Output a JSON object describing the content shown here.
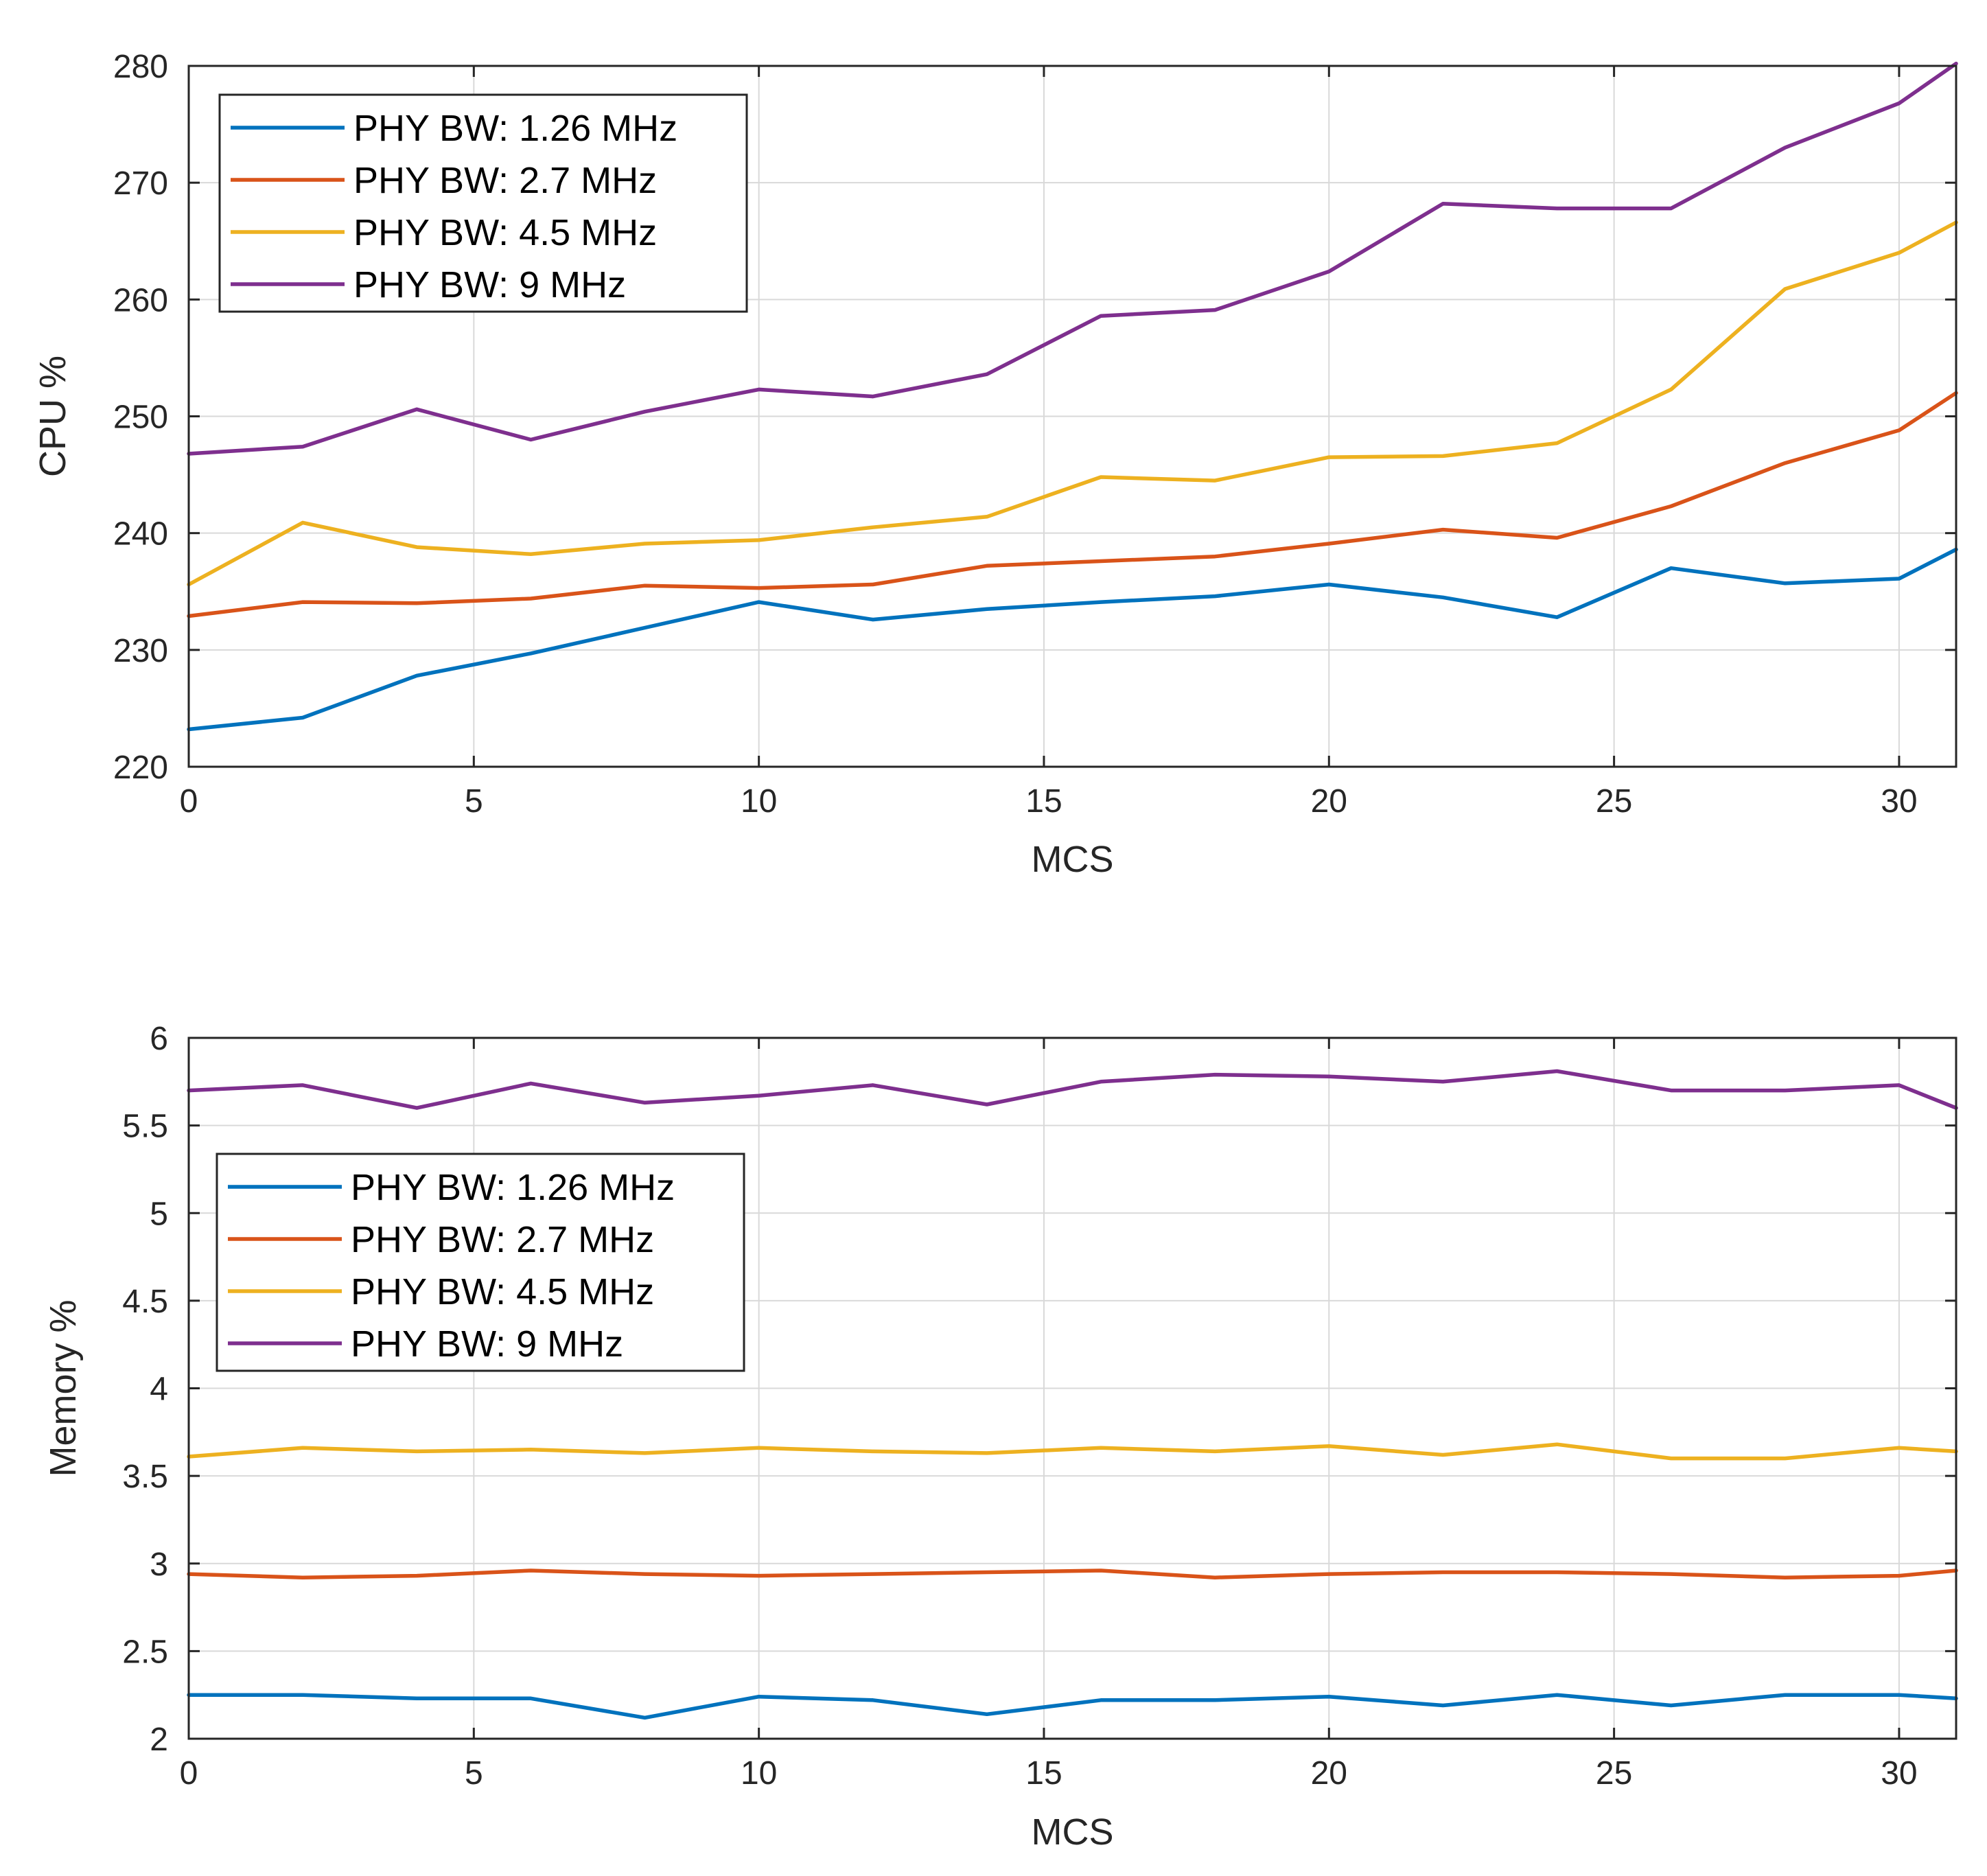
{
  "chart_data": [
    {
      "type": "line",
      "title": "",
      "xlabel": "MCS",
      "ylabel": "CPU %",
      "xlim": [
        0,
        31
      ],
      "ylim": [
        220,
        280
      ],
      "xticks": [
        0,
        5,
        10,
        15,
        20,
        25,
        30
      ],
      "yticks": [
        220,
        230,
        240,
        250,
        260,
        270,
        280
      ],
      "grid": true,
      "legend_position": "top-left",
      "x": [
        0,
        2,
        4,
        6,
        8,
        10,
        12,
        14,
        16,
        18,
        20,
        22,
        24,
        26,
        28,
        30,
        31
      ],
      "series": [
        {
          "name": "PHY BW: 1.26 MHz",
          "color": "#0072BD",
          "values": [
            223.2,
            224.2,
            227.8,
            229.7,
            231.9,
            234.1,
            232.6,
            233.5,
            234.1,
            234.6,
            235.6,
            234.5,
            232.8,
            237.0,
            235.7,
            236.1,
            238.6
          ]
        },
        {
          "name": "PHY BW: 2.7 MHz",
          "color": "#D95319",
          "values": [
            232.9,
            234.1,
            234.0,
            234.4,
            235.5,
            235.3,
            235.6,
            237.2,
            237.6,
            238.0,
            239.1,
            240.3,
            239.6,
            242.3,
            246.0,
            248.8,
            252.0
          ]
        },
        {
          "name": "PHY BW: 4.5 MHz",
          "color": "#EDB120",
          "values": [
            235.6,
            240.9,
            238.8,
            238.2,
            239.1,
            239.4,
            240.5,
            241.4,
            244.8,
            244.5,
            246.5,
            246.6,
            247.7,
            252.3,
            260.9,
            264.0,
            266.6
          ]
        },
        {
          "name": "PHY BW: 9 MHz",
          "color": "#7E2F8E",
          "values": [
            246.8,
            247.4,
            250.6,
            248.0,
            250.4,
            252.3,
            251.7,
            253.6,
            258.6,
            259.1,
            262.4,
            268.2,
            267.8,
            267.8,
            273.0,
            276.8,
            280.2
          ]
        }
      ]
    },
    {
      "type": "line",
      "title": "",
      "xlabel": "MCS",
      "ylabel": "Memory %",
      "xlim": [
        0,
        31
      ],
      "ylim": [
        2,
        6
      ],
      "xticks": [
        0,
        5,
        10,
        15,
        20,
        25,
        30
      ],
      "yticks": [
        2,
        2.5,
        3,
        3.5,
        4,
        4.5,
        5,
        5.5,
        6
      ],
      "grid": true,
      "legend_position": "upper-left",
      "x": [
        0,
        2,
        4,
        6,
        8,
        10,
        12,
        14,
        16,
        18,
        20,
        22,
        24,
        26,
        28,
        30,
        31
      ],
      "series": [
        {
          "name": "PHY BW: 1.26 MHz",
          "color": "#0072BD",
          "values": [
            2.25,
            2.25,
            2.23,
            2.23,
            2.12,
            2.24,
            2.22,
            2.14,
            2.22,
            2.22,
            2.24,
            2.19,
            2.25,
            2.19,
            2.25,
            2.25,
            2.23
          ]
        },
        {
          "name": "PHY BW: 2.7 MHz",
          "color": "#D95319",
          "values": [
            2.94,
            2.92,
            2.93,
            2.96,
            2.94,
            2.93,
            2.94,
            2.95,
            2.96,
            2.92,
            2.94,
            2.95,
            2.95,
            2.94,
            2.92,
            2.93,
            2.96
          ]
        },
        {
          "name": "PHY BW: 4.5 MHz",
          "color": "#EDB120",
          "values": [
            3.61,
            3.66,
            3.64,
            3.65,
            3.63,
            3.66,
            3.64,
            3.63,
            3.66,
            3.64,
            3.67,
            3.62,
            3.68,
            3.6,
            3.6,
            3.66,
            3.64
          ]
        },
        {
          "name": "PHY BW: 9 MHz",
          "color": "#7E2F8E",
          "values": [
            5.7,
            5.73,
            5.6,
            5.74,
            5.63,
            5.67,
            5.73,
            5.62,
            5.75,
            5.79,
            5.78,
            5.75,
            5.81,
            5.7,
            5.7,
            5.73,
            5.6
          ]
        }
      ]
    }
  ]
}
